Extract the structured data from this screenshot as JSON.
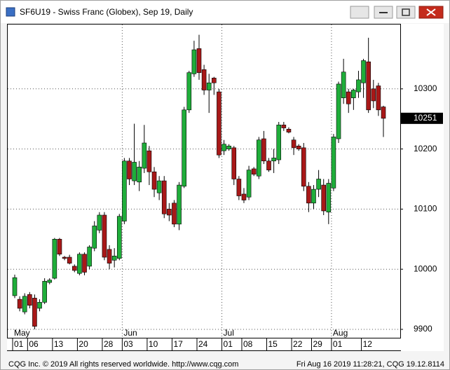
{
  "chart_data": {
    "type": "candlestick",
    "title": "SF6U19 - Swiss Franc (Globex), Sep 19, Daily",
    "categories": [
      "01",
      null,
      null,
      "06",
      null,
      null,
      null,
      null,
      "13",
      null,
      null,
      null,
      null,
      "20",
      null,
      null,
      null,
      null,
      "28",
      null,
      null,
      null,
      "03",
      null,
      null,
      null,
      null,
      "10",
      null,
      null,
      null,
      null,
      "17",
      null,
      null,
      null,
      null,
      "24",
      null,
      null,
      null,
      null,
      "01",
      null,
      null,
      null,
      "08",
      null,
      null,
      null,
      null,
      "15",
      null,
      null,
      null,
      null,
      "22",
      null,
      null,
      null,
      "29",
      null,
      null,
      null,
      "01",
      null,
      null,
      null,
      null,
      null,
      "12",
      null,
      null,
      null,
      null
    ],
    "months": [
      {
        "value": 0,
        "label": "May"
      },
      {
        "value": 22,
        "label": "Jun"
      },
      {
        "value": 42,
        "label": "Jul"
      },
      {
        "value": 64,
        "label": "Aug"
      }
    ],
    "open": [
      9956,
      9950,
      9929,
      9958,
      9952,
      9935,
      9945,
      9978,
      9985,
      10050,
      10020,
      10020,
      10005,
      9993,
      10025,
      10005,
      10035,
      10065,
      10090,
      10033,
      10015,
      10018,
      10080,
      10180,
      10147,
      10145,
      10168,
      10197,
      10162,
      10127,
      10147,
      10100,
      10110,
      10075,
      10138,
      10265,
      10325,
      10367,
      10332,
      10298,
      10318,
      10295,
      10197,
      10200,
      10202,
      10150,
      10125,
      10120,
      10167,
      10155,
      10217,
      10180,
      10180,
      10182,
      10240,
      10233,
      10215,
      10205,
      10202,
      10138,
      10110,
      10133,
      10140,
      10095,
      10135,
      10217,
      10285,
      10295,
      10285,
      10295,
      10310,
      10345,
      10300,
      10305,
      10270
    ],
    "high": [
      9991,
      9955,
      9960,
      9962,
      9958,
      9950,
      9985,
      9985,
      10052,
      10052,
      10022,
      10024,
      10008,
      10028,
      10028,
      10040,
      10080,
      10095,
      10095,
      10040,
      10035,
      10092,
      10185,
      10185,
      10242,
      10180,
      10240,
      10205,
      10170,
      10155,
      10155,
      10110,
      10115,
      10145,
      10270,
      10330,
      10380,
      10390,
      10340,
      10325,
      10320,
      10300,
      10215,
      10208,
      10205,
      10155,
      10135,
      10172,
      10170,
      10220,
      10230,
      10185,
      10200,
      10245,
      10245,
      10236,
      10220,
      10208,
      10210,
      10145,
      10140,
      10165,
      10150,
      10150,
      10225,
      10312,
      10350,
      10300,
      10300,
      10330,
      10350,
      10385,
      10315,
      10310,
      10272
    ],
    "low": [
      9952,
      9930,
      9925,
      9935,
      9900,
      9930,
      9942,
      9975,
      9983,
      10022,
      10015,
      10008,
      9995,
      9990,
      9990,
      10000,
      10030,
      10060,
      10015,
      10000,
      10003,
      10015,
      10075,
      10140,
      10140,
      10130,
      10160,
      10140,
      10120,
      10115,
      10085,
      10080,
      10070,
      10065,
      10135,
      10260,
      10320,
      10315,
      10290,
      10260,
      10290,
      10185,
      10190,
      10197,
      10140,
      10115,
      10110,
      10115,
      10155,
      10150,
      10175,
      10162,
      10160,
      10175,
      10230,
      10226,
      10190,
      10197,
      10130,
      10095,
      10100,
      10120,
      10090,
      10075,
      10130,
      10210,
      10275,
      10260,
      10265,
      10285,
      10285,
      10260,
      10268,
      10255,
      10220
    ],
    "close": [
      9986,
      9935,
      9955,
      9940,
      9905,
      9945,
      9980,
      9982,
      10050,
      10025,
      10018,
      10010,
      9998,
      10025,
      9995,
      10037,
      10072,
      10090,
      10020,
      10010,
      10022,
      10088,
      10180,
      10150,
      10178,
      10170,
      10210,
      10162,
      10133,
      10147,
      10092,
      10090,
      10075,
      10140,
      10265,
      10327,
      10365,
      10327,
      10298,
      10310,
      10310,
      10190,
      10208,
      10205,
      10150,
      10122,
      10115,
      10165,
      10158,
      10215,
      10180,
      10165,
      10185,
      10240,
      10235,
      10228,
      10202,
      10200,
      10138,
      10110,
      10133,
      10150,
      10097,
      10143,
      10220,
      10308,
      10328,
      10275,
      10298,
      10315,
      10347,
      10265,
      10280,
      10265,
      10251
    ],
    "up_color": "#1fae3a",
    "down_color": "#a81818",
    "last_price": 10251,
    "ylim": [
      9886,
      10407
    ],
    "yticks": [
      9900,
      10000,
      10100,
      10200,
      10300
    ],
    "grid": true
  },
  "window": {
    "footer_left": "CQG Inc. © 2019 All rights reserved worldwide. http://www.cqg.com",
    "footer_right": "Fri Aug 16 2019 11:28:21, CQG 19.12.8114"
  }
}
